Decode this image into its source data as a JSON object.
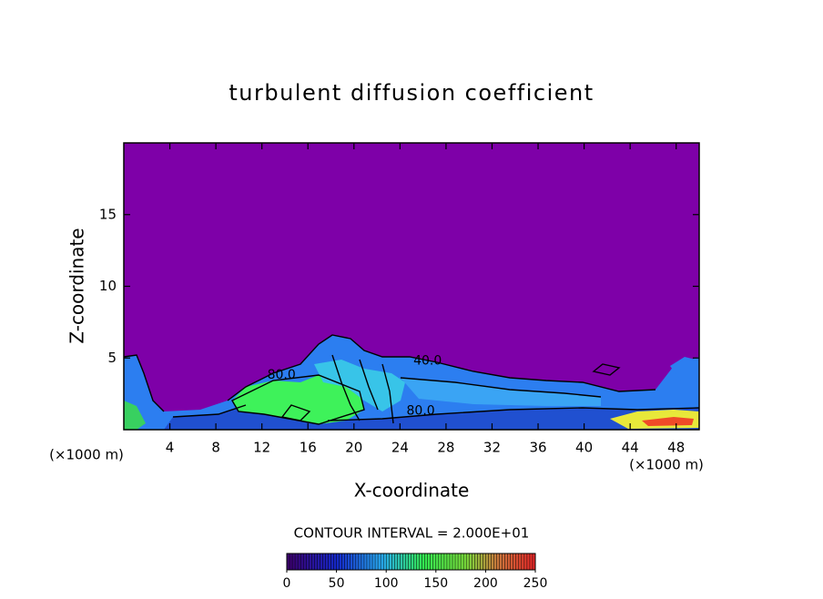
{
  "chart_data": {
    "type": "contour",
    "title": "turbulent diffusion coefficient",
    "x_label": "X-coordinate",
    "y_label": "Z-coordinate",
    "x_unit": "(×1000 m)",
    "y_unit": "(×1000 m)",
    "xlim": [
      0,
      50
    ],
    "xticks": [
      4,
      8,
      12,
      16,
      20,
      24,
      28,
      32,
      36,
      40,
      44,
      48
    ],
    "ylim": [
      0,
      20
    ],
    "yticks": [
      5,
      10,
      15
    ],
    "background_color": "#7e00a8",
    "contour_labels": [
      {
        "text": "40.0",
        "x": 26.4,
        "y": 4.8
      },
      {
        "text": "80.0",
        "x": 25.8,
        "y": 1.3
      },
      {
        "text": "80.0",
        "x": 13.7,
        "y": 3.8
      }
    ],
    "contour_interval_text": "CONTOUR INTERVAL = 2.000E+01",
    "colorbar": {
      "clim": [
        0,
        250
      ],
      "cticks": [
        0,
        50,
        100,
        150,
        200,
        250
      ]
    }
  }
}
